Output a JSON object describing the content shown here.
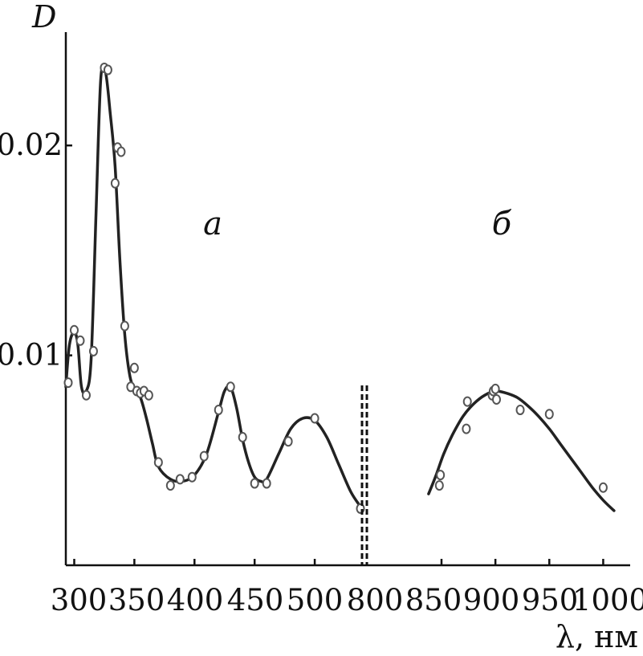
{
  "chart_data": {
    "type": "line",
    "ylabel": "D",
    "xlabel": "λ, нм",
    "ylim": [
      0.0,
      0.0254
    ],
    "yticks": [
      0.01,
      0.02
    ],
    "ytick_labels": [
      "0.01",
      "0.02"
    ],
    "panels": [
      {
        "label": "а",
        "xlim": [
          293,
          540
        ],
        "xticks": [
          300,
          350,
          400,
          450,
          500
        ],
        "xtick_labels": [
          "300",
          "350",
          "400",
          "450",
          "500"
        ],
        "curve": {
          "x": [
            293,
            296,
            300,
            303,
            306,
            310,
            314,
            318,
            322,
            326,
            330,
            334,
            338,
            342,
            346,
            350,
            355,
            360,
            365,
            370,
            380,
            390,
            400,
            410,
            420,
            425,
            430,
            435,
            440,
            445,
            450,
            455,
            460,
            470,
            480,
            490,
            500,
            510,
            520,
            530,
            538
          ],
          "y": [
            0.0085,
            0.0105,
            0.0111,
            0.0105,
            0.0085,
            0.0083,
            0.0098,
            0.0165,
            0.0231,
            0.0235,
            0.0215,
            0.019,
            0.0145,
            0.011,
            0.0091,
            0.0084,
            0.008,
            0.007,
            0.0058,
            0.0047,
            0.0041,
            0.004,
            0.0043,
            0.0053,
            0.0073,
            0.0083,
            0.0085,
            0.0075,
            0.006,
            0.0049,
            0.0042,
            0.004,
            0.0041,
            0.0053,
            0.0065,
            0.007,
            0.0069,
            0.0061,
            0.0048,
            0.0035,
            0.0028
          ]
        },
        "points": {
          "x": [
            295,
            300,
            305,
            310,
            316,
            325,
            328,
            334,
            336,
            339,
            342,
            347,
            350,
            352,
            355,
            358,
            362,
            370,
            380,
            388,
            398,
            408,
            420,
            430,
            440,
            450,
            460,
            478,
            500,
            538
          ],
          "y": [
            0.0087,
            0.0112,
            0.0107,
            0.0081,
            0.0102,
            0.0237,
            0.0236,
            0.0182,
            0.0199,
            0.0197,
            0.0114,
            0.0085,
            0.0094,
            0.0083,
            0.0082,
            0.0083,
            0.0081,
            0.0049,
            0.0038,
            0.0041,
            0.0042,
            0.0052,
            0.0074,
            0.0085,
            0.0061,
            0.0039,
            0.0039,
            0.0059,
            0.007,
            0.0027
          ]
        }
      },
      {
        "label": "б",
        "xlim": [
          780,
          1025
        ],
        "xticks": [
          800,
          850,
          900,
          950,
          1000
        ],
        "xtick_labels": [
          "800",
          "850",
          "900",
          "950",
          "1000"
        ],
        "curve": {
          "x": [
            838,
            845,
            852,
            860,
            870,
            880,
            890,
            900,
            910,
            920,
            930,
            940,
            950,
            960,
            970,
            980,
            990,
            1000,
            1010
          ],
          "y": [
            0.0034,
            0.0043,
            0.0053,
            0.0062,
            0.0071,
            0.0077,
            0.0081,
            0.0083,
            0.0082,
            0.008,
            0.0076,
            0.0071,
            0.0065,
            0.0058,
            0.0051,
            0.0044,
            0.0037,
            0.0031,
            0.0026
          ]
        },
        "points": {
          "x": [
            848,
            849,
            873,
            874,
            897,
            898,
            900,
            901,
            923,
            950,
            1000
          ],
          "y": [
            0.0038,
            0.0043,
            0.0065,
            0.0078,
            0.0081,
            0.0083,
            0.0084,
            0.0079,
            0.0074,
            0.0072,
            0.0037
          ]
        }
      }
    ]
  }
}
